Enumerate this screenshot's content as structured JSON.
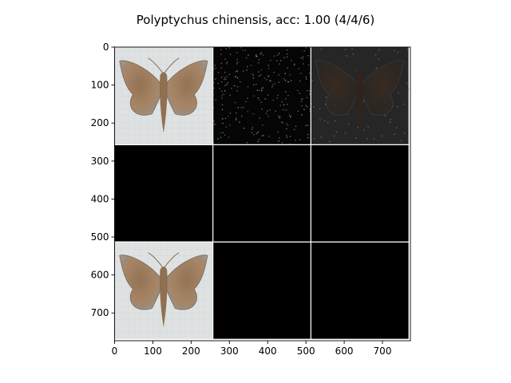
{
  "figure": {
    "title": "Polyptychus chinensis, acc: 1.00 (4/4/6)"
  },
  "chart_data": {
    "type": "image-grid",
    "title": "Polyptychus chinensis, acc: 1.00 (4/4/6)",
    "xlabel": "",
    "ylabel": "",
    "xlim": [
      0,
      773
    ],
    "ylim": [
      773,
      0
    ],
    "x_ticks": [
      0,
      100,
      200,
      300,
      400,
      500,
      600,
      700
    ],
    "y_ticks": [
      0,
      100,
      200,
      300,
      400,
      500,
      600,
      700
    ],
    "grid_rows": 3,
    "grid_cols": 3,
    "cell_size": 256,
    "cells": [
      {
        "row": 0,
        "col": 0,
        "content": "moth photo"
      },
      {
        "row": 0,
        "col": 1,
        "content": "sparse colored noise on black"
      },
      {
        "row": 0,
        "col": 2,
        "content": "dark moth silhouette"
      },
      {
        "row": 1,
        "col": 0,
        "content": "black"
      },
      {
        "row": 1,
        "col": 1,
        "content": "black"
      },
      {
        "row": 1,
        "col": 2,
        "content": "black"
      },
      {
        "row": 2,
        "col": 0,
        "content": "moth photo"
      },
      {
        "row": 2,
        "col": 1,
        "content": "black"
      },
      {
        "row": 2,
        "col": 2,
        "content": "black"
      }
    ],
    "colors": {
      "moth_brown": "#8a6a4a",
      "moth_dark": "#5a4230",
      "photo_bg": "#dfe2e2",
      "black": "#000000",
      "separator": "#ffffff"
    }
  }
}
